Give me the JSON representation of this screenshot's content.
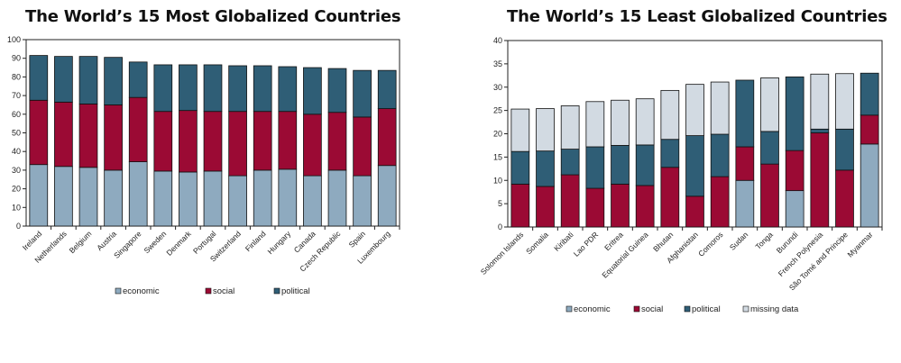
{
  "chart_data": [
    {
      "type": "bar",
      "stacked": true,
      "title": "The World’s 15 Most Globalized Countries",
      "categories": [
        "Ireland",
        "Netherlands",
        "Belgium",
        "Austria",
        "Singapore",
        "Sweden",
        "Denmark",
        "Portugal",
        "Switzerland",
        "Finland",
        "Hungary",
        "Canada",
        "Czech Republic",
        "Spain",
        "Luxembourg"
      ],
      "series": [
        {
          "name": "economic",
          "values": [
            33,
            32,
            31.5,
            30,
            34.5,
            29.5,
            29,
            29.5,
            27,
            30,
            30.5,
            27,
            30,
            27,
            32.5
          ]
        },
        {
          "name": "social",
          "values": [
            34.5,
            34.5,
            34,
            35,
            34.5,
            32,
            33,
            32,
            34.5,
            31.5,
            31,
            33,
            31,
            31.5,
            30.5
          ]
        },
        {
          "name": "political",
          "values": [
            24,
            24.5,
            25.5,
            25.5,
            19,
            25,
            24.5,
            25,
            24.5,
            24.5,
            24,
            25,
            23.5,
            25,
            20.5
          ]
        }
      ],
      "ylim": [
        0,
        100
      ],
      "yticks": [
        0,
        10,
        20,
        30,
        40,
        50,
        60,
        70,
        80,
        90,
        100
      ],
      "colors": {
        "economic": "#8eaabf",
        "social": "#9b0a34",
        "political": "#2f5e76",
        "missing data": "#d2dae2"
      },
      "grid": false,
      "legend": "bottom"
    },
    {
      "type": "bar",
      "stacked": true,
      "title": "The World’s 15 Least Globalized Countries",
      "categories": [
        "Solomon Islands",
        "Somalia",
        "Kiribati",
        "Lao PDR",
        "Eritrea",
        "Equatorial Guinea",
        "Bhutan",
        "Afghanistan",
        "Comoros",
        "Sudan",
        "Tonga",
        "Burundi",
        "French Polynesia",
        "São Tomé and Principe",
        "Myanmar"
      ],
      "series": [
        {
          "name": "economic",
          "values": [
            0,
            0,
            0,
            0,
            0,
            0,
            0,
            0,
            0,
            10,
            0,
            7.8,
            0,
            0,
            17.8
          ]
        },
        {
          "name": "social",
          "values": [
            9.2,
            8.7,
            11.2,
            8.3,
            9.2,
            8.9,
            12.8,
            6.6,
            10.8,
            7.2,
            13.5,
            8.6,
            20.2,
            12.2,
            6.2
          ]
        },
        {
          "name": "political",
          "values": [
            7,
            7.6,
            5.5,
            8.9,
            8.3,
            8.7,
            6,
            13,
            9.1,
            14.3,
            7,
            15.8,
            0.8,
            8.8,
            9
          ]
        },
        {
          "name": "missing data",
          "values": [
            9.1,
            9.1,
            9.3,
            9.7,
            9.7,
            9.9,
            10.5,
            11,
            11.2,
            0,
            11.5,
            0,
            11.8,
            11.9,
            0
          ]
        }
      ],
      "ylim": [
        0,
        40
      ],
      "yticks": [
        0,
        5,
        10,
        15,
        20,
        25,
        30,
        35,
        40
      ],
      "colors": {
        "economic": "#8eaabf",
        "social": "#9b0a34",
        "political": "#2f5e76",
        "missing data": "#d2dae2"
      },
      "grid": false,
      "legend": "bottom"
    }
  ]
}
